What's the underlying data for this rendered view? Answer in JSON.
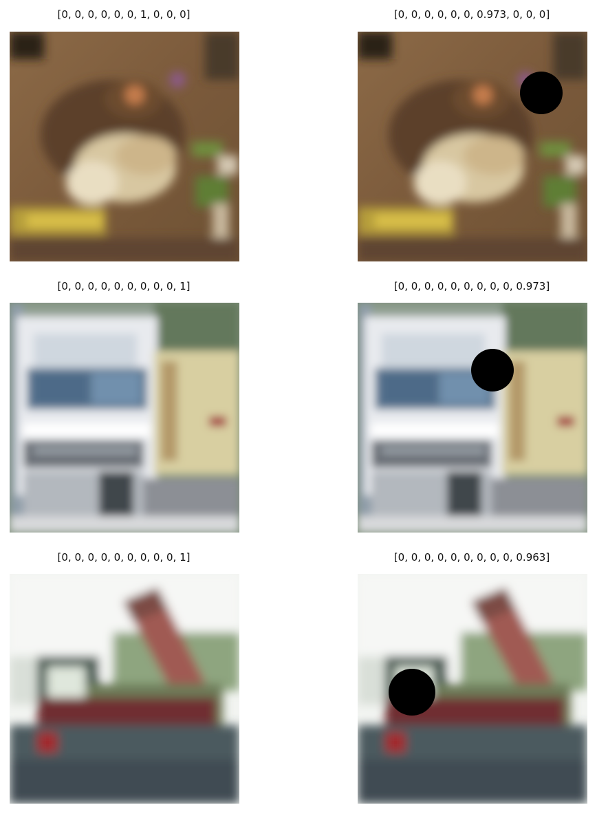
{
  "panels": [
    {
      "caption": "[0, 0, 0, 0, 0, 0, 1, 0, 0, 0]",
      "image": "frog"
    },
    {
      "caption": "[0, 0, 0, 0, 0, 0, 0.973, 0, 0, 0]",
      "image": "frog-occluded"
    },
    {
      "caption": "[0, 0, 0, 0, 0, 0, 0, 0, 0, 1]",
      "image": "white-truck"
    },
    {
      "caption": "[0, 0, 0, 0, 0, 0, 0, 0, 0, 0.973]",
      "image": "white-truck-occluded"
    },
    {
      "caption": "[0, 0, 0, 0, 0, 0, 0, 0, 0, 1]",
      "image": "dump-truck"
    },
    {
      "caption": "[0, 0, 0, 0, 0, 0, 0, 0, 0, 0.963]",
      "image": "dump-truck-occluded"
    }
  ]
}
